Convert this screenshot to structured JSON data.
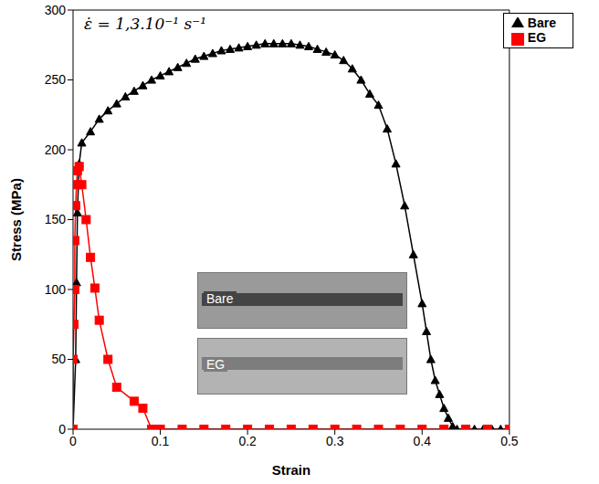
{
  "chart_data": {
    "type": "line",
    "annotation": "ε̇ = 1,3.10⁻¹ s⁻¹",
    "x_label": "Strain",
    "y_label": "Stress (MPa)",
    "inset_labels": [
      "Bare",
      "EG"
    ],
    "xlim": [
      0,
      0.5
    ],
    "xticks": [
      0,
      0.1,
      0.2,
      0.3,
      0.4,
      0.5
    ],
    "ylim": [
      0,
      300
    ],
    "yticks": [
      0,
      50,
      100,
      150,
      200,
      250,
      300
    ],
    "grid": false,
    "legend": "top-right",
    "series": [
      {
        "name": "Bare",
        "color": "#000000",
        "marker": "triangle",
        "x": [
          0,
          0.003,
          0.004,
          0.005,
          0.007,
          0.01,
          0.02,
          0.03,
          0.04,
          0.05,
          0.06,
          0.07,
          0.08,
          0.09,
          0.1,
          0.11,
          0.12,
          0.13,
          0.14,
          0.15,
          0.16,
          0.17,
          0.18,
          0.19,
          0.2,
          0.21,
          0.22,
          0.23,
          0.24,
          0.25,
          0.26,
          0.27,
          0.28,
          0.29,
          0.3,
          0.31,
          0.32,
          0.33,
          0.34,
          0.35,
          0.36,
          0.37,
          0.38,
          0.39,
          0.4,
          0.405,
          0.41,
          0.415,
          0.42,
          0.425,
          0.43,
          0.435,
          0.44,
          0.45,
          0.46,
          0.47,
          0.48,
          0.49,
          0.5
        ],
        "values": [
          0,
          50,
          105,
          155,
          190,
          205,
          213,
          222,
          228,
          233,
          238,
          242,
          246,
          250,
          253,
          256,
          259,
          262,
          265,
          267,
          269,
          271,
          272,
          273,
          274,
          275,
          276,
          276,
          276,
          276,
          275,
          274,
          272,
          270,
          268,
          264,
          258,
          250,
          240,
          232,
          215,
          190,
          160,
          125,
          90,
          70,
          50,
          35,
          25,
          15,
          8,
          2,
          0,
          0,
          0,
          0,
          0,
          0,
          0
        ]
      },
      {
        "name": "EG",
        "color": "#ff0000",
        "marker": "square",
        "x": [
          0,
          0,
          0.001,
          0.002,
          0.002,
          0.003,
          0.004,
          0.005,
          0.007,
          0.01,
          0.015,
          0.02,
          0.025,
          0.03,
          0.04,
          0.05,
          0.07,
          0.08,
          0.09,
          0.1,
          0.125,
          0.15,
          0.175,
          0.2,
          0.225,
          0.25,
          0.275,
          0.3,
          0.325,
          0.35,
          0.375,
          0.4,
          0.425,
          0.45,
          0.475,
          0.5
        ],
        "values": [
          0,
          50,
          75,
          100,
          135,
          160,
          175,
          185,
          188,
          175,
          150,
          123,
          101,
          78,
          50,
          30,
          20,
          15,
          0,
          0,
          0,
          0,
          0,
          0,
          0,
          0,
          0,
          0,
          0,
          0,
          0,
          0,
          0,
          0,
          0,
          0
        ]
      }
    ]
  }
}
